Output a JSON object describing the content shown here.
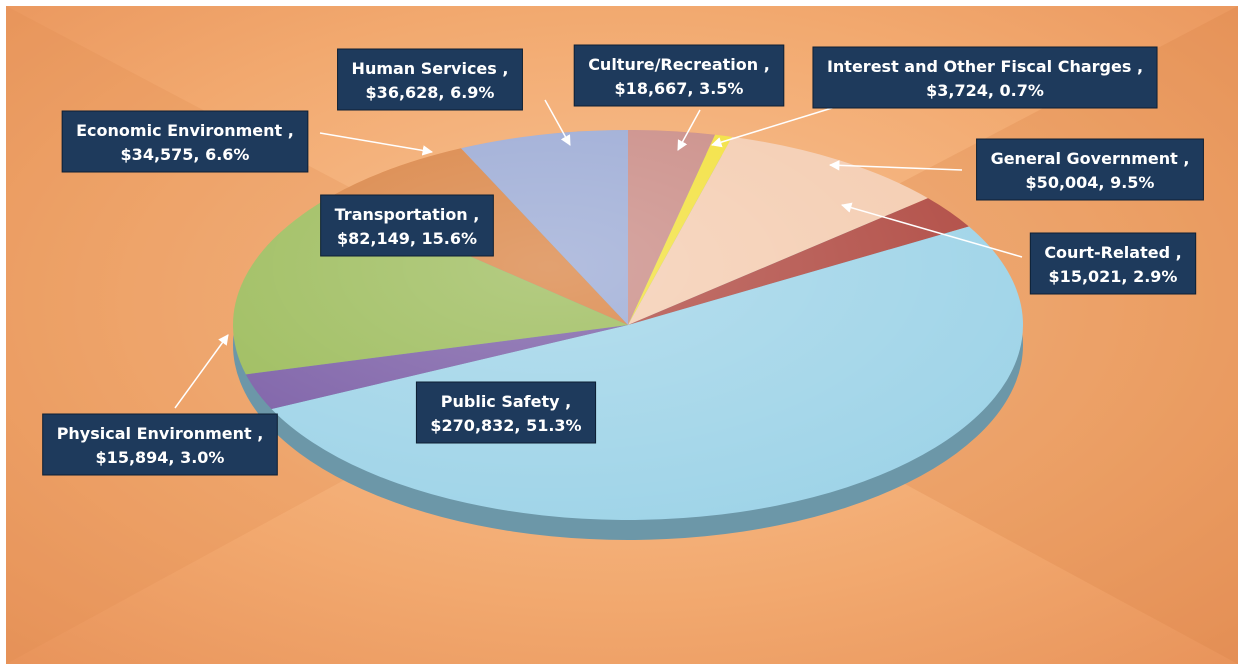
{
  "chart_data": {
    "type": "pie",
    "categories": [
      "Culture/Recreation",
      "Interest and Other Fiscal Charges",
      "General Government",
      "Court-Related",
      "Public Safety",
      "Physical Environment",
      "Transportation",
      "Economic Environment",
      "Human Services"
    ],
    "values": [
      18667,
      3724,
      50004,
      15021,
      270832,
      15894,
      82149,
      34575,
      36628
    ],
    "value_labels": [
      "$18,667, 3.5%",
      "$3,724, 0.7%",
      "$50,004, 9.5%",
      "$15,021, 2.9%",
      "$270,832, 51.3%",
      "$15,894, 3.0%",
      "$82,149, 15.6%",
      "$34,575, 6.6%",
      "$36,628, 6.9%"
    ],
    "percentages": [
      3.5,
      0.7,
      9.5,
      2.9,
      51.3,
      3.0,
      15.6,
      6.6,
      6.9
    ],
    "label_separator": " ,",
    "colors": [
      "#c98a84",
      "#f2e03a",
      "#f4ccb0",
      "#b04a42",
      "#9fd4e8",
      "#7b5ea6",
      "#9bbb59",
      "#d98241",
      "#9aa9d4"
    ]
  }
}
